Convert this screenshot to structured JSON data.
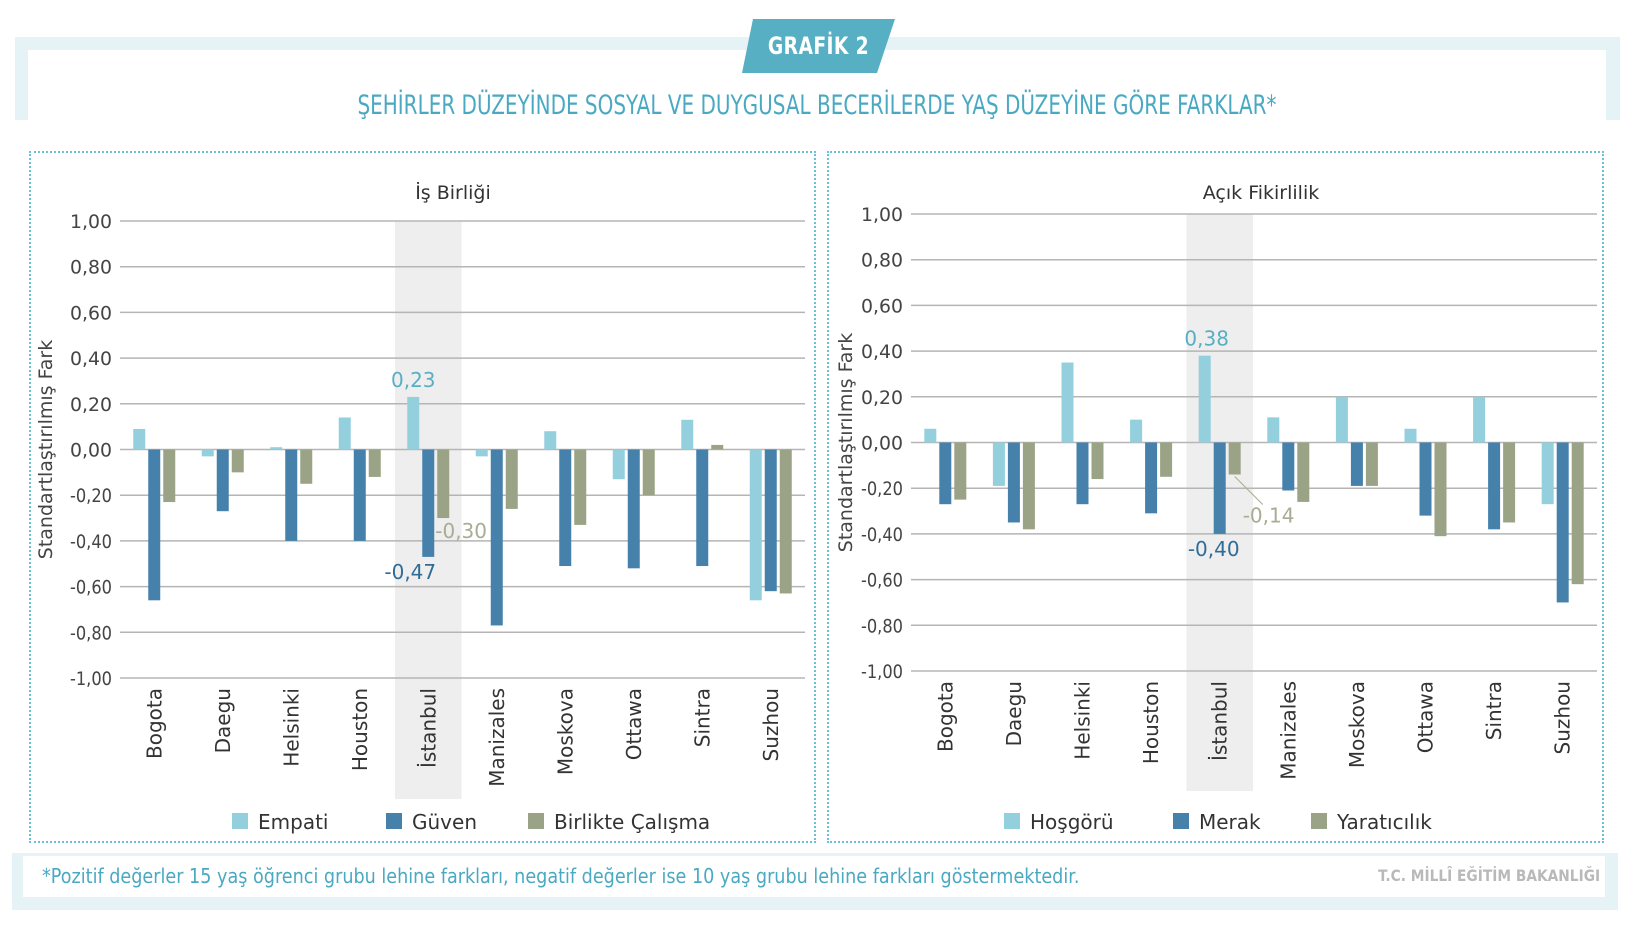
{
  "badge": {
    "label": "GRAFİK 2"
  },
  "title": "ŞEHİRLER DÜZEYİNDE SOSYAL VE DUYGUSAL BECERİLERDE YAŞ DÜZEYİNE GÖRE FARKLAR*",
  "footnote": "*Pozitif değerler 15 yaş öğrenci grubu lehine farkları, negatif değerler ise 10 yaş grubu lehine farkları göstermektedir.",
  "source": "T.C. MİLLÎ EĞİTİM BAKANLIĞI",
  "colors": {
    "light": "#93cfdd",
    "dark": "#4581ab",
    "olive": "#9aa386",
    "accent": "#57afc3",
    "highlight": "#eeeeee"
  },
  "chart_data": [
    {
      "type": "bar",
      "title": "İş Birliği",
      "xlabel": "",
      "ylabel": "Standartlaştırılmış Fark",
      "ylim": [
        -1.0,
        1.0
      ],
      "yticks": [
        "1,00",
        "0,80",
        "0,60",
        "0,40",
        "0,20",
        "0,00",
        "-0,20",
        "-0,40",
        "-0,60",
        "-0,80",
        "-1,00"
      ],
      "grid": true,
      "legend": "bottom",
      "highlight_category": "İstanbul",
      "categories": [
        "Bogota",
        "Daegu",
        "Helsinki",
        "Houston",
        "İstanbul",
        "Manizales",
        "Moskova",
        "Ottawa",
        "Sintra",
        "Suzhou"
      ],
      "series": [
        {
          "name": "Empati",
          "color": "#93cfdd",
          "values": [
            0.09,
            -0.03,
            0.01,
            0.14,
            0.23,
            -0.03,
            0.08,
            -0.13,
            0.13,
            -0.66
          ]
        },
        {
          "name": "Güven",
          "color": "#4581ab",
          "values": [
            -0.66,
            -0.27,
            -0.4,
            -0.4,
            -0.47,
            -0.77,
            -0.51,
            -0.52,
            -0.51,
            -0.62
          ]
        },
        {
          "name": "Birlikte Çalışma",
          "color": "#9aa386",
          "values": [
            -0.23,
            -0.1,
            -0.15,
            -0.12,
            -0.3,
            -0.26,
            -0.33,
            -0.2,
            0.02,
            -0.63
          ]
        }
      ],
      "annotations": [
        {
          "category": "İstanbul",
          "series": 0,
          "text": "0,23"
        },
        {
          "category": "İstanbul",
          "series": 1,
          "text": "-0,47"
        },
        {
          "category": "İstanbul",
          "series": 2,
          "text": "-0,30"
        }
      ]
    },
    {
      "type": "bar",
      "title": "Açık Fikirlilik",
      "xlabel": "",
      "ylabel": "Standartlaştırılmış Fark",
      "ylim": [
        -1.0,
        1.0
      ],
      "yticks": [
        "1,00",
        "0,80",
        "0,60",
        "0,40",
        "0,20",
        "0,00",
        "-0,20",
        "-0,40",
        "-0,60",
        "-0,80",
        "-1,00"
      ],
      "grid": true,
      "legend": "bottom",
      "highlight_category": "İstanbul",
      "categories": [
        "Bogota",
        "Daegu",
        "Helsinki",
        "Houston",
        "İstanbul",
        "Manizales",
        "Moskova",
        "Ottawa",
        "Sintra",
        "Suzhou"
      ],
      "series": [
        {
          "name": "Hoşgörü",
          "color": "#93cfdd",
          "values": [
            0.06,
            -0.19,
            0.35,
            0.1,
            0.38,
            0.11,
            0.2,
            0.06,
            0.2,
            -0.27
          ]
        },
        {
          "name": "Merak",
          "color": "#4581ab",
          "values": [
            -0.27,
            -0.35,
            -0.27,
            -0.31,
            -0.4,
            -0.21,
            -0.19,
            -0.32,
            -0.38,
            -0.7
          ]
        },
        {
          "name": "Yaratıcılık",
          "color": "#9aa386",
          "values": [
            -0.25,
            -0.38,
            -0.16,
            -0.15,
            -0.14,
            -0.26,
            -0.19,
            -0.41,
            -0.35,
            -0.62
          ]
        }
      ],
      "annotations": [
        {
          "category": "İstanbul",
          "series": 0,
          "text": "0,38"
        },
        {
          "category": "İstanbul",
          "series": 1,
          "text": "-0,40"
        },
        {
          "category": "İstanbul",
          "series": 2,
          "text": "-0,14"
        }
      ]
    }
  ]
}
